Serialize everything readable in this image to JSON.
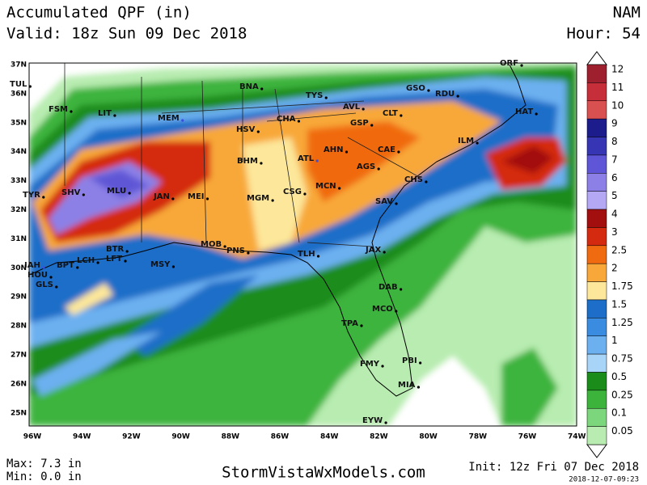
{
  "header": {
    "title": "Accumulated QPF (in)",
    "valid": "Valid: 18z Sun 09 Dec 2018",
    "model": "NAM",
    "hour": "Hour: 54"
  },
  "map": {
    "lat_labels": [
      "37N",
      "36N",
      "35N",
      "34N",
      "33N",
      "32N",
      "31N",
      "30N",
      "29N",
      "28N",
      "27N",
      "26N",
      "25N"
    ],
    "lon_labels": [
      "96W",
      "94W",
      "92W",
      "90W",
      "88W",
      "86W",
      "84W",
      "82W",
      "80W",
      "78W",
      "76W",
      "74W"
    ],
    "cities": [
      "TUL",
      "FSM",
      "LIT",
      "MEM",
      "BNA",
      "TYS",
      "GSO",
      "RDU",
      "ORF",
      "HAT",
      "AVL",
      "CLT",
      "CHA",
      "GSP",
      "HSV",
      "ILM",
      "AHN",
      "CAE",
      "BHM",
      "ATL",
      "AGS",
      "CHS",
      "TYR",
      "SHV",
      "MLU",
      "JAN",
      "MEI",
      "MGM",
      "CSG",
      "MCN",
      "SAV",
      "BTR",
      "MOB",
      "PNS",
      "TLH",
      "JAX",
      "IAH",
      "BPT",
      "LCH",
      "LFT",
      "MSY",
      "HOU",
      "GLS",
      "DAB",
      "MCO",
      "TPA",
      "FMY",
      "PBI",
      "MIA",
      "EYW"
    ]
  },
  "legend": {
    "entries": [
      {
        "label": "12",
        "color": "#9e1f2e"
      },
      {
        "label": "11",
        "color": "#c62f3a"
      },
      {
        "label": "10",
        "color": "#d95050"
      },
      {
        "label": "9",
        "color": "#1c1c8c"
      },
      {
        "label": "8",
        "color": "#3636b4"
      },
      {
        "label": "7",
        "color": "#5e56d6"
      },
      {
        "label": "6",
        "color": "#8c80e6"
      },
      {
        "label": "5",
        "color": "#b4a8f4"
      },
      {
        "label": "4",
        "color": "#a30f0f"
      },
      {
        "label": "3",
        "color": "#d42a10"
      },
      {
        "label": "2.5",
        "color": "#f06a10"
      },
      {
        "label": "2",
        "color": "#f8a838"
      },
      {
        "label": "1.75",
        "color": "#fde79a"
      },
      {
        "label": "1.5",
        "color": "#1c6ec8"
      },
      {
        "label": "1.25",
        "color": "#3a8ce0"
      },
      {
        "label": "1",
        "color": "#6cb0f0"
      },
      {
        "label": "0.75",
        "color": "#a8d4f8"
      },
      {
        "label": "0.5",
        "color": "#1a8c1a"
      },
      {
        "label": "0.25",
        "color": "#3cb43c"
      },
      {
        "label": "0.1",
        "color": "#7cd67c"
      },
      {
        "label": "0.05",
        "color": "#b8ecb0"
      }
    ]
  },
  "footer": {
    "max": "Max: 7.3 in",
    "min": "Min: 0.0 in",
    "site": "StormVistaWxModels.com",
    "init": "Init: 12z Fri 07 Dec 2018",
    "stamp": "2018-12-07-09:23"
  }
}
